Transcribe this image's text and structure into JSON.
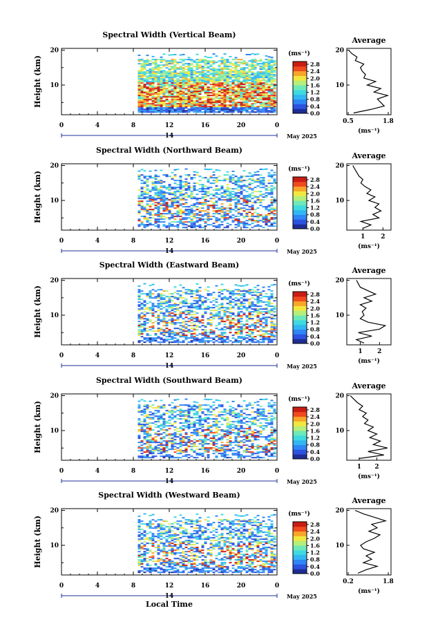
{
  "figure": {
    "xlabel": "Local Time",
    "x_ticks": [
      "0",
      "4",
      "8",
      "12",
      "16",
      "20",
      "0"
    ],
    "date_label": "14",
    "month_label": "May 2025",
    "colorbar_unit": "(ms⁻¹)",
    "colorbar_ticks": [
      "2.8",
      "2.4",
      "2.0",
      "1.6",
      "1.2",
      "0.8",
      "0.4",
      "0.0"
    ],
    "y_label": "Height (km)",
    "y_ticks": [
      "20",
      "10"
    ],
    "avg_title": "Average",
    "avg_unit": "(ms⁻¹)",
    "colors": {
      "scale": [
        "#1e2d96",
        "#2c52e0",
        "#2f86f5",
        "#32b7f2",
        "#3fd9e0",
        "#6ee8b8",
        "#b5ee7a",
        "#f2e740",
        "#f7a62a",
        "#f04a1f",
        "#c91c14"
      ]
    }
  },
  "chart_data": [
    {
      "type": "heatmap",
      "title": "Spectral Width (Vertical Beam)",
      "x_range_hours": [
        0,
        24
      ],
      "data_start_hour": 8.5,
      "y_range_km": [
        1.5,
        20.5
      ],
      "color_range": [
        0.0,
        2.8
      ],
      "avg_xlim": [
        0.5,
        1.8
      ],
      "avg_xticks": [
        "0.5",
        "1.8"
      ],
      "avg_profile": {
        "height_km": [
          2,
          3,
          4,
          5,
          6,
          7,
          8,
          9,
          10,
          11,
          12,
          13,
          14,
          15,
          16,
          17,
          18,
          19,
          20
        ],
        "value": [
          0.7,
          1.2,
          1.6,
          1.5,
          1.4,
          1.7,
          1.3,
          1.5,
          1.1,
          1.35,
          1.0,
          1.05,
          0.95,
          0.9,
          1.0,
          0.75,
          0.8,
          0.65,
          0.55
        ]
      }
    },
    {
      "type": "heatmap",
      "title": "Spectral Width (Northward Beam)",
      "x_range_hours": [
        0,
        24
      ],
      "data_start_hour": 8.5,
      "y_range_km": [
        1.5,
        20.5
      ],
      "color_range": [
        0.0,
        2.8
      ],
      "avg_xlim": [
        0.2,
        2.4
      ],
      "avg_xticks": [
        "1",
        "2"
      ],
      "avg_profile": {
        "height_km": [
          2,
          3,
          4,
          5,
          6,
          7,
          8,
          9,
          10,
          11,
          12,
          13,
          14,
          15,
          16,
          17,
          18,
          19,
          20
        ],
        "value": [
          1.0,
          1.4,
          0.9,
          1.8,
          1.5,
          1.9,
          1.6,
          1.8,
          1.3,
          1.6,
          1.2,
          1.4,
          1.1,
          0.9,
          1.0,
          0.8,
          0.7,
          0.6,
          0.5
        ]
      }
    },
    {
      "type": "heatmap",
      "title": "Spectral Width (Eastward Beam)",
      "x_range_hours": [
        0,
        24
      ],
      "data_start_hour": 8.5,
      "y_range_km": [
        1.5,
        20.5
      ],
      "color_range": [
        0.0,
        2.8
      ],
      "avg_xlim": [
        0.3,
        2.6
      ],
      "avg_xticks": [
        "1",
        "2"
      ],
      "avg_profile": {
        "height_km": [
          2,
          3,
          4,
          5,
          6,
          7,
          8,
          9,
          10,
          11,
          12,
          13,
          14,
          15,
          16,
          17,
          18,
          19,
          20
        ],
        "value": [
          1.2,
          0.8,
          1.6,
          0.9,
          2.0,
          2.3,
          1.4,
          1.0,
          1.2,
          1.1,
          1.3,
          1.0,
          1.6,
          1.2,
          1.8,
          1.4,
          1.0,
          0.9,
          0.8
        ]
      }
    },
    {
      "type": "heatmap",
      "title": "Spectral Width (Southward Beam)",
      "x_range_hours": [
        0,
        24
      ],
      "data_start_hour": 8.5,
      "y_range_km": [
        1.5,
        20.5
      ],
      "color_range": [
        0.0,
        2.8
      ],
      "avg_xlim": [
        0.3,
        2.8
      ],
      "avg_xticks": [
        "1",
        "2"
      ],
      "avg_profile": {
        "height_km": [
          2,
          3,
          4,
          5,
          6,
          7,
          8,
          9,
          10,
          11,
          12,
          13,
          14,
          15,
          16,
          17,
          18,
          19,
          20
        ],
        "value": [
          1.0,
          2.4,
          1.5,
          2.6,
          1.8,
          2.2,
          1.6,
          2.0,
          1.5,
          1.8,
          1.3,
          1.5,
          1.2,
          1.4,
          1.0,
          1.2,
          0.9,
          0.7,
          0.5
        ]
      }
    },
    {
      "type": "heatmap",
      "title": "Spectral Width (Westward Beam)",
      "x_range_hours": [
        0,
        24
      ],
      "data_start_hour": 8.5,
      "y_range_km": [
        1.5,
        20.5
      ],
      "color_range": [
        0.0,
        2.8
      ],
      "avg_xlim": [
        0.2,
        1.8
      ],
      "avg_xticks": [
        "0.2",
        "1.8"
      ],
      "avg_profile": {
        "height_km": [
          2,
          3,
          4,
          5,
          6,
          7,
          8,
          9,
          10,
          11,
          12,
          13,
          14,
          15,
          16,
          17,
          18,
          19,
          20
        ],
        "value": [
          0.6,
          0.9,
          1.3,
          0.8,
          1.1,
          0.9,
          1.2,
          0.8,
          0.7,
          0.9,
          1.2,
          1.4,
          1.0,
          1.3,
          1.1,
          1.6,
          1.2,
          0.8,
          0.5
        ]
      }
    }
  ]
}
